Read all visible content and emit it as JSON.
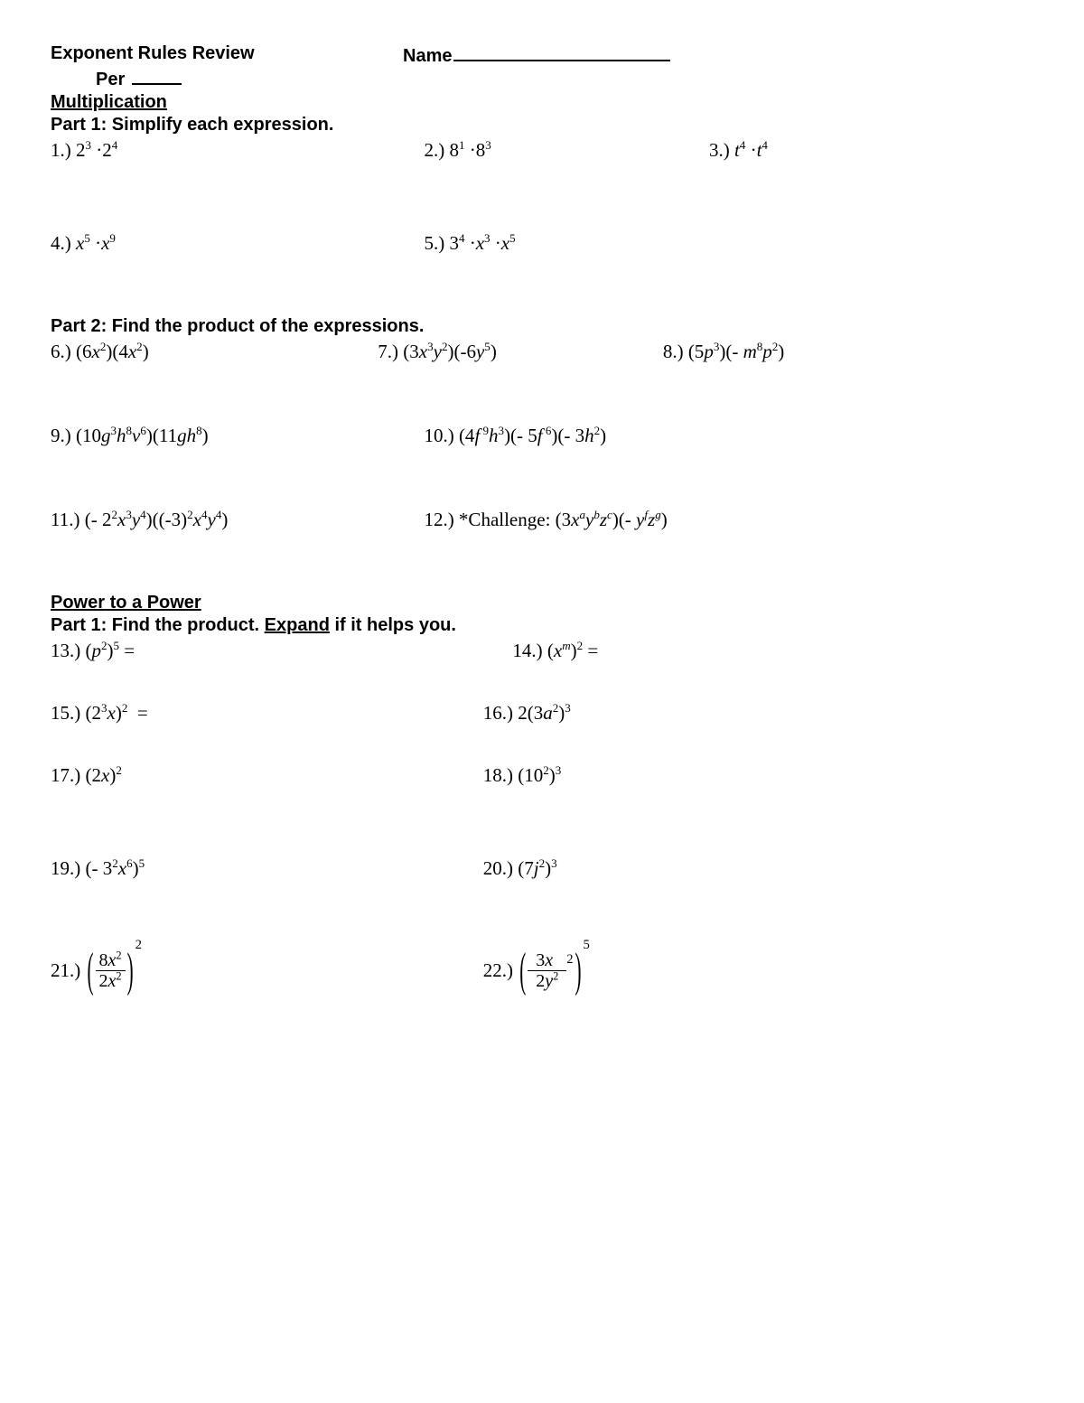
{
  "header": {
    "title": "Exponent Rules Review",
    "name_label": "Name",
    "per_label": "Per"
  },
  "s1": {
    "section": "Multiplication",
    "part1_head": "Part 1: Simplify each expression.",
    "part2_head": "Part 2: Find the product of the expressions."
  },
  "s2": {
    "section": "Power to a Power",
    "part_head_before": "Part 1: Find the product. ",
    "part_head_expand": "Expand",
    "part_head_after": " if it helps you."
  },
  "q": {
    "n1": "1.)",
    "n2": "2.)",
    "n3": "3.)",
    "n4": "4.)",
    "n5": "5.)",
    "n6": "6.)",
    "n7": "7.)",
    "n8": "8.)",
    "n9": "9.)",
    "n10": "10.)",
    "n11": "11.)",
    "n12_pre": "12.) *Challenge: ",
    "n13": "13.)",
    "n14": "14.)",
    "n15": "15.)",
    "n16": "16.)",
    "n17": "17.)",
    "n18": "18.)",
    "n19": "19.)",
    "n20": "20.)",
    "n21": "21.)",
    "n22": "22.)"
  }
}
